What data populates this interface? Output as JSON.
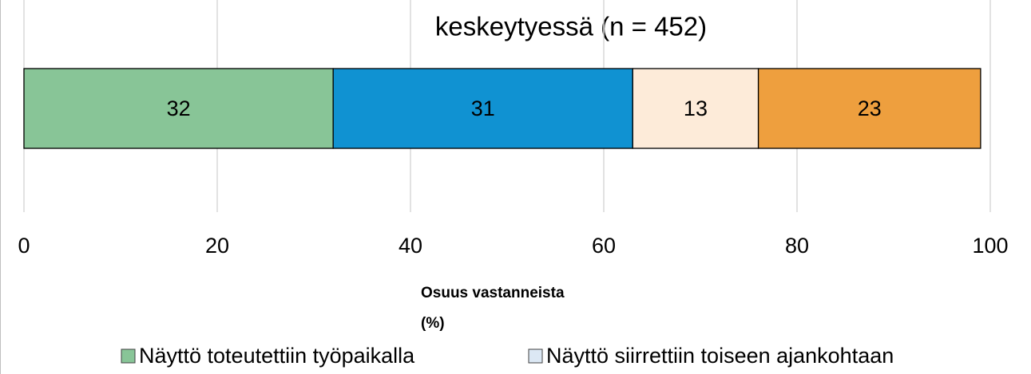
{
  "chart_data": {
    "type": "stacked_bar_horizontal",
    "title": "keskeytyessä (n = 452)",
    "series": [
      {
        "color": "#88c597",
        "values": [
          32
        ]
      },
      {
        "color": "#1092d2",
        "values": [
          31
        ]
      },
      {
        "color": "#fdebd9",
        "values": [
          13
        ]
      },
      {
        "color": "#ee9f3e",
        "values": [
          23
        ]
      }
    ],
    "xlim": [
      0,
      100
    ],
    "xticks": [
      0,
      20,
      40,
      60,
      80,
      100
    ],
    "grid": true,
    "x_label": [
      "Osuus vastanneista",
      "(%)"
    ],
    "legend": [
      {
        "name": "Näyttö toteutettiin työpaikalla",
        "color": "#88c597"
      },
      {
        "name": "Näyttö siirrettiin toiseen ajankohtaan",
        "color": "#dce8f4"
      }
    ]
  }
}
